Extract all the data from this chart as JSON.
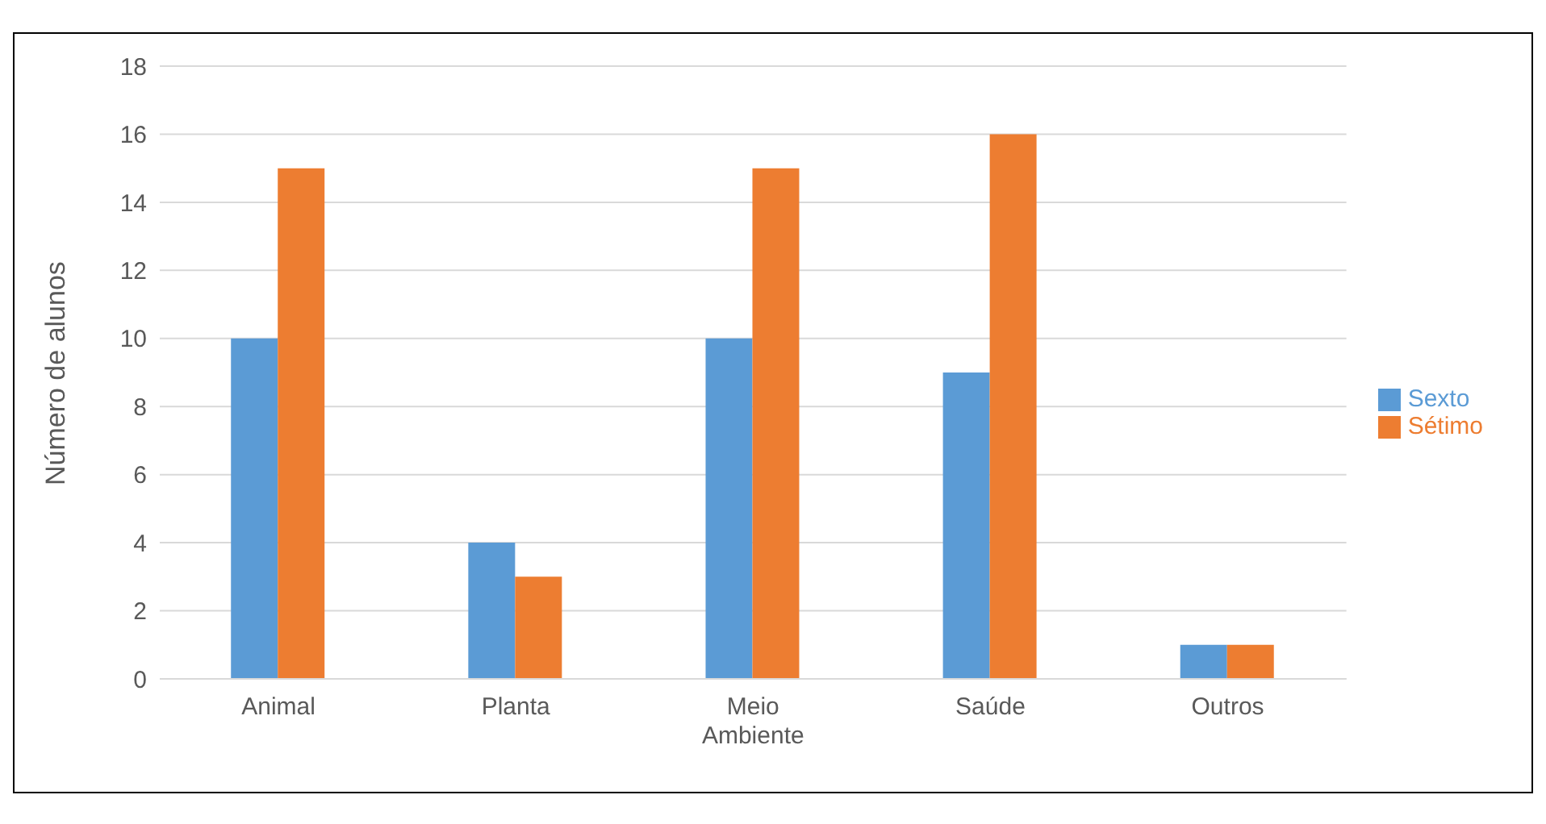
{
  "chart_data": {
    "type": "bar",
    "ylabel": "Número de alunos",
    "categories": [
      "Animal",
      "Planta",
      "Meio Ambiente",
      "Saúde",
      "Outros"
    ],
    "series": [
      {
        "name": "Sexto",
        "color": "#5b9bd5",
        "values": [
          10,
          4,
          10,
          9,
          1
        ]
      },
      {
        "name": "Sétimo",
        "color": "#ed7d31",
        "values": [
          15,
          3,
          15,
          16,
          1
        ]
      }
    ],
    "ylim": [
      0,
      18
    ],
    "yticks": [
      0,
      2,
      4,
      6,
      8,
      10,
      12,
      14,
      16,
      18
    ],
    "grid": "y",
    "legend": "right"
  }
}
